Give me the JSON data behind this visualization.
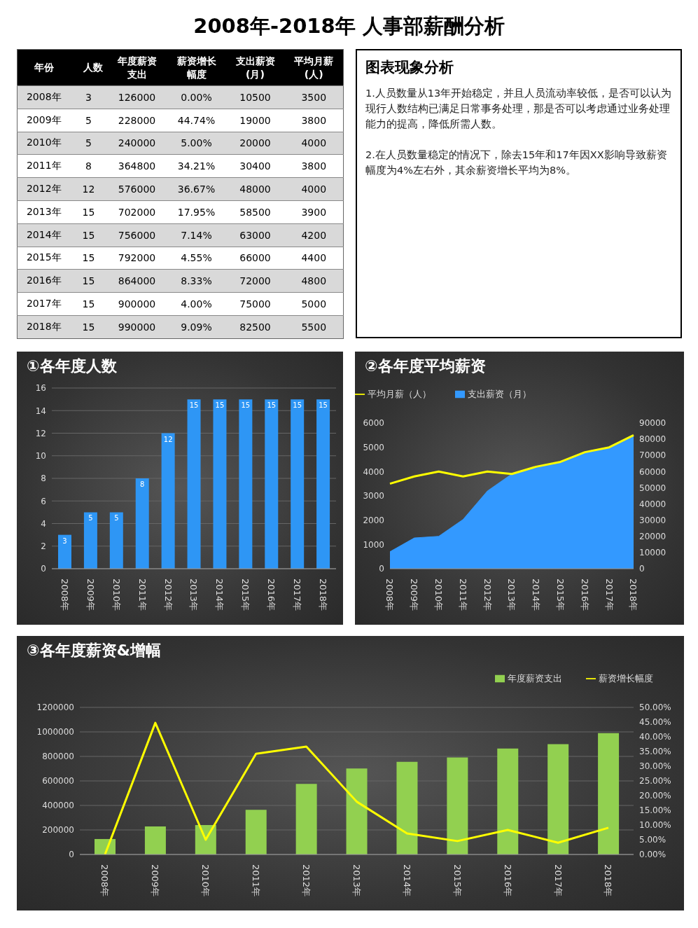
{
  "chart_data": [
    {
      "type": "heatmap",
      "title": "2008年-2018年 人事部薪酬分析",
      "ylabel": "年份",
      "data_labels": true,
      "categories": [
        "人数",
        "年度薪资支出",
        "薪资增长幅度",
        "支出薪资(月)",
        "平均月薪(人)"
      ],
      "y_categories": [
        "2008年",
        "2009年",
        "2010年",
        "2011年",
        "2012年",
        "2013年",
        "2014年",
        "2015年",
        "2016年",
        "2017年",
        "2018年"
      ],
      "cells": [
        [
          3,
          126000,
          0,
          10500,
          3500
        ],
        [
          5,
          228000,
          44.74,
          19000,
          3800
        ],
        [
          5,
          240000,
          5,
          20000,
          4000
        ],
        [
          8,
          364800,
          34.21,
          30400,
          3800
        ],
        [
          12,
          576000,
          36.67,
          48000,
          4000
        ],
        [
          15,
          702000,
          17.95,
          58500,
          3900
        ],
        [
          15,
          756000,
          7.14,
          63000,
          4200
        ],
        [
          15,
          792000,
          4.55,
          66000,
          4400
        ],
        [
          15,
          864000,
          8.33,
          72000,
          4800
        ],
        [
          15,
          900000,
          4,
          75000,
          5000
        ],
        [
          15,
          990000,
          9.09,
          82500,
          5500
        ]
      ],
      "cell_labels": [
        [
          "3",
          "126000",
          "0.00%",
          "10500",
          "3500"
        ],
        [
          "5",
          "228000",
          "44.74%",
          "19000",
          "3800"
        ],
        [
          "5",
          "240000",
          "5.00%",
          "20000",
          "4000"
        ],
        [
          "8",
          "364800",
          "34.21%",
          "30400",
          "3800"
        ],
        [
          "12",
          "576000",
          "36.67%",
          "48000",
          "4000"
        ],
        [
          "15",
          "702000",
          "17.95%",
          "58500",
          "3900"
        ],
        [
          "15",
          "756000",
          "7.14%",
          "63000",
          "4200"
        ],
        [
          "15",
          "792000",
          "4.55%",
          "66000",
          "4400"
        ],
        [
          "15",
          "864000",
          "8.33%",
          "72000",
          "4800"
        ],
        [
          "15",
          "900000",
          "4.00%",
          "75000",
          "5000"
        ],
        [
          "15",
          "990000",
          "9.09%",
          "82500",
          "5500"
        ]
      ]
    },
    {
      "type": "other",
      "title": "图表现象分析",
      "annotations": [
        "1.人员数量从13年开始稳定，并且人员流动率较低，是否可以认为现行人数结构已满足日常事务处理，那是否可以考虑通过业务处理能力的提高，降低所需人数。",
        "2.在人员数量稳定的情况下，除去15年和17年因XX影响导致薪资幅度为4%左右外，其余薪资增长平均为8%。"
      ]
    },
    {
      "type": "bar",
      "title": "①各年度人数",
      "categories": [
        "2008年",
        "2009年",
        "2010年",
        "2011年",
        "2012年",
        "2013年",
        "2014年",
        "2015年",
        "2016年",
        "2017年",
        "2018年"
      ],
      "color": "#2e96f5",
      "values": [
        3,
        5,
        5,
        8,
        12,
        15,
        15,
        15,
        15,
        15,
        15
      ],
      "ylim": [
        0,
        16
      ],
      "yticks": [
        0,
        2,
        4,
        6,
        8,
        10,
        12,
        14,
        16
      ],
      "grid": "y",
      "data_labels": true
    },
    {
      "type": "area",
      "title": "②各年度平均薪资",
      "categories": [
        "2008年",
        "2009年",
        "2010年",
        "2011年",
        "2012年",
        "2013年",
        "2014年",
        "2015年",
        "2016年",
        "2017年",
        "2018年"
      ],
      "legend": "top left",
      "ylim": [
        0,
        6000
      ],
      "yticks": [
        0,
        1000,
        2000,
        3000,
        4000,
        5000,
        6000
      ],
      "y2lim": [
        0,
        90000
      ],
      "y2ticks": [
        0,
        10000,
        20000,
        30000,
        40000,
        50000,
        60000,
        70000,
        80000,
        90000
      ],
      "series": [
        {
          "name": "支出薪资（月）",
          "color": "#3399ff",
          "axis": "y2",
          "values": [
            10500,
            19000,
            20000,
            30400,
            48000,
            58500,
            63000,
            66000,
            72000,
            75000,
            82500
          ]
        },
        {
          "name": "平均月薪（人）",
          "type": "line",
          "color": "#ffff00",
          "values": [
            3500,
            3800,
            4000,
            3800,
            4000,
            3900,
            4200,
            4400,
            4800,
            5000,
            5500
          ]
        }
      ]
    },
    {
      "type": "bar",
      "title": "③各年度薪资&增幅",
      "categories": [
        "2008年",
        "2009年",
        "2010年",
        "2011年",
        "2012年",
        "2013年",
        "2014年",
        "2015年",
        "2016年",
        "2017年",
        "2018年"
      ],
      "legend": "top right",
      "grid": "y",
      "ylim": [
        0,
        1200000
      ],
      "yticks": [
        0,
        200000,
        400000,
        600000,
        800000,
        1000000,
        1200000
      ],
      "y2lim": [
        0,
        50
      ],
      "y2ticks": [
        {
          "value": 0,
          "label": "0.00%"
        },
        {
          "value": 5,
          "label": "5.00%"
        },
        {
          "value": 10,
          "label": "10.00%"
        },
        {
          "value": 15,
          "label": "15.00%"
        },
        {
          "value": 20,
          "label": "20.00%"
        },
        {
          "value": 25,
          "label": "25.00%"
        },
        {
          "value": 30,
          "label": "30.00%"
        },
        {
          "value": 35,
          "label": "35.00%"
        },
        {
          "value": 40,
          "label": "40.00%"
        },
        {
          "value": 45,
          "label": "45.00%"
        },
        {
          "value": 50,
          "label": "50.00%"
        }
      ],
      "series": [
        {
          "name": "年度薪资支出",
          "color": "#92d050",
          "values": [
            126000,
            228000,
            240000,
            364800,
            576000,
            702000,
            756000,
            792000,
            864000,
            900000,
            990000
          ]
        },
        {
          "name": "薪资增长幅度",
          "type": "line",
          "color": "#ffff00",
          "axis": "y2",
          "values": [
            0,
            44.74,
            5,
            34.21,
            36.67,
            17.95,
            7.14,
            4.55,
            8.33,
            4,
            9.09
          ]
        }
      ]
    }
  ]
}
